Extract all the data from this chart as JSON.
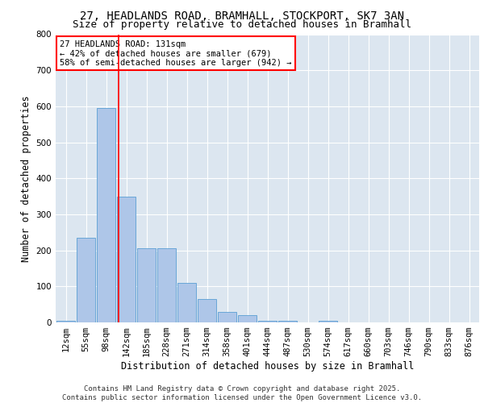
{
  "title_line1": "27, HEADLANDS ROAD, BRAMHALL, STOCKPORT, SK7 3AN",
  "title_line2": "Size of property relative to detached houses in Bramhall",
  "xlabel": "Distribution of detached houses by size in Bramhall",
  "ylabel": "Number of detached properties",
  "bar_color": "#aec6e8",
  "bar_edge_color": "#5a9fd4",
  "bg_color": "#dce6f0",
  "grid_color": "#ffffff",
  "categories": [
    "12sqm",
    "55sqm",
    "98sqm",
    "142sqm",
    "185sqm",
    "228sqm",
    "271sqm",
    "314sqm",
    "358sqm",
    "401sqm",
    "444sqm",
    "487sqm",
    "530sqm",
    "574sqm",
    "617sqm",
    "660sqm",
    "703sqm",
    "746sqm",
    "790sqm",
    "833sqm",
    "876sqm"
  ],
  "values": [
    5,
    235,
    595,
    350,
    205,
    205,
    110,
    65,
    30,
    20,
    5,
    5,
    0,
    5,
    0,
    0,
    0,
    0,
    0,
    0,
    0
  ],
  "red_line_x": 2.62,
  "annotation_text": "27 HEADLANDS ROAD: 131sqm\n← 42% of detached houses are smaller (679)\n58% of semi-detached houses are larger (942) →",
  "annotation_box_color": "white",
  "annotation_box_edge": "red",
  "ylim": [
    0,
    800
  ],
  "yticks": [
    0,
    100,
    200,
    300,
    400,
    500,
    600,
    700,
    800
  ],
  "footer_text": "Contains HM Land Registry data © Crown copyright and database right 2025.\nContains public sector information licensed under the Open Government Licence v3.0.",
  "title_fontsize": 10,
  "subtitle_fontsize": 9,
  "axis_label_fontsize": 8.5,
  "tick_fontsize": 7.5,
  "annotation_fontsize": 7.5,
  "footer_fontsize": 6.5
}
